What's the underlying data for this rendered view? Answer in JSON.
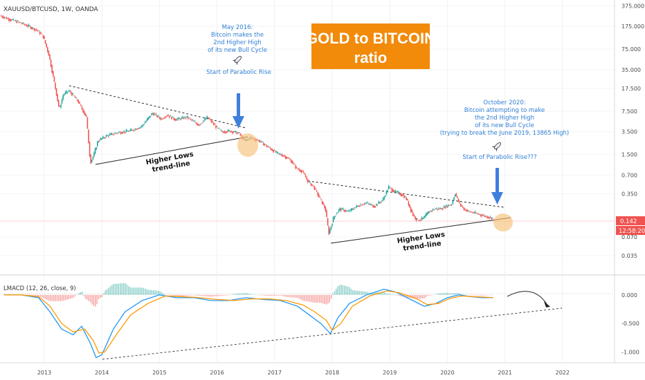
{
  "header": {
    "symbol_line": "XAUUSD/BTCUSD, 1W, OANDA"
  },
  "title_box": {
    "line1": "GOLD to BITCOIN",
    "line2": "ratio",
    "color": "#f28a0a"
  },
  "annotations": {
    "may2016": [
      "May 2016:",
      "Bitcoin makes the",
      "2nd Higher High",
      "of its new Bull Cycle"
    ],
    "start_parabolic": "Start of Parabolic Rise",
    "oct2020": [
      "October 2020:",
      "Bitcoin attempting to make",
      "the 2nd Higher High",
      "of its new Bull Cycle",
      "(trying to break the June 2019, 13865 High)"
    ],
    "start_parabolic_q": "Start of Parabolic Rise???",
    "higher_lows_1": [
      "Higher Lows",
      "trend-line"
    ],
    "higher_lows_2": [
      "Higher Lows",
      "trend-line"
    ]
  },
  "price_badge": {
    "value": "0.142",
    "timer": "12:58:20",
    "color": "#ef5350"
  },
  "indicator": {
    "label": "LMACD (12, 26, close, 9)"
  },
  "colors": {
    "up": "#26a69a",
    "down": "#ef5350",
    "macd": "#2196f3",
    "signal": "#ff9800",
    "hist_up": "#26a69a",
    "hist_down": "#ef5350",
    "annotation": "#2f7fd6"
  },
  "chart_data": [
    {
      "type": "line",
      "scale": "log",
      "series": [
        {
          "x": [
            2012.25,
            2012.4,
            2012.6,
            2012.75,
            2012.9,
            2013.0,
            2013.1,
            2013.2,
            2013.28,
            2013.35,
            2013.45,
            2013.6,
            2013.75,
            2013.82,
            2013.88,
            2013.95,
            2014.1,
            2014.3,
            2014.5,
            2014.7,
            2014.9,
            2015.05,
            2015.15,
            2015.3,
            2015.5,
            2015.7,
            2015.85,
            2016.0,
            2016.1,
            2016.25,
            2016.4,
            2016.5,
            2016.6,
            2016.75,
            2016.9,
            2017.05,
            2017.2,
            2017.3,
            2017.4,
            2017.5,
            2017.6,
            2017.7,
            2017.8,
            2017.9,
            2017.96,
            2018.05,
            2018.15,
            2018.3,
            2018.45,
            2018.6,
            2018.75,
            2018.9,
            2019.0,
            2019.1,
            2019.2,
            2019.3,
            2019.42,
            2019.5,
            2019.6,
            2019.7,
            2019.8,
            2019.9,
            2020.0,
            2020.1,
            2020.15,
            2020.22,
            2020.3,
            2020.4,
            2020.5,
            2020.6,
            2020.7,
            2020.8
          ],
          "y": [
            260,
            230,
            200,
            175,
            150,
            120,
            60,
            20,
            8,
            14,
            16,
            11,
            6,
            1.1,
            1.5,
            2.5,
            3.0,
            3.4,
            3.6,
            4.2,
            7.0,
            5.6,
            6.5,
            5.5,
            6.0,
            4.5,
            6.0,
            4.2,
            3.5,
            3.6,
            3.3,
            2.5,
            2.8,
            2.5,
            2.0,
            1.6,
            1.4,
            1.2,
            0.9,
            0.8,
            0.55,
            0.45,
            0.3,
            0.2,
            0.08,
            0.15,
            0.2,
            0.18,
            0.22,
            0.25,
            0.22,
            0.28,
            0.45,
            0.38,
            0.35,
            0.3,
            0.16,
            0.13,
            0.14,
            0.18,
            0.2,
            0.2,
            0.22,
            0.24,
            0.36,
            0.25,
            0.2,
            0.18,
            0.17,
            0.16,
            0.15,
            0.142
          ]
        }
      ],
      "x_ticks": [
        "2013",
        "2014",
        "2015",
        "2016",
        "2017",
        "2018",
        "2019",
        "2020",
        "2021",
        "2022"
      ],
      "y_ticks": [
        "375.000",
        "175.000",
        "75.000",
        "35.000",
        "17.500",
        "7.500",
        "3.500",
        "1.500",
        "0.700",
        "0.350",
        "0.070",
        "0.035"
      ],
      "ylim": [
        0.02,
        420
      ]
    },
    {
      "type": "line",
      "series": [
        {
          "name": "LMACD",
          "x": [
            2012.3,
            2012.6,
            2012.9,
            2013.1,
            2013.3,
            2013.5,
            2013.65,
            2013.8,
            2013.9,
            2014.0,
            2014.2,
            2014.4,
            2014.7,
            2015.0,
            2015.3,
            2015.6,
            2015.9,
            2016.2,
            2016.5,
            2016.8,
            2017.1,
            2017.4,
            2017.6,
            2017.8,
            2017.97,
            2018.1,
            2018.3,
            2018.6,
            2018.9,
            2019.1,
            2019.4,
            2019.6,
            2019.8,
            2020.0,
            2020.2,
            2020.4,
            2020.6,
            2020.8
          ],
          "y": [
            0.0,
            0.0,
            -0.05,
            -0.3,
            -0.6,
            -0.7,
            -0.55,
            -0.85,
            -1.1,
            -1.05,
            -0.6,
            -0.3,
            -0.1,
            0.0,
            -0.05,
            -0.05,
            -0.1,
            -0.1,
            -0.05,
            -0.08,
            -0.1,
            -0.2,
            -0.35,
            -0.5,
            -0.68,
            -0.4,
            -0.15,
            0.0,
            0.1,
            0.05,
            -0.1,
            -0.2,
            -0.15,
            -0.05,
            0.0,
            -0.03,
            -0.05,
            -0.05
          ]
        },
        {
          "name": "Signal",
          "x": [
            2012.3,
            2012.6,
            2012.9,
            2013.1,
            2013.3,
            2013.5,
            2013.7,
            2013.85,
            2013.95,
            2014.05,
            2014.25,
            2014.5,
            2014.8,
            2015.1,
            2015.4,
            2015.7,
            2016.0,
            2016.3,
            2016.6,
            2016.9,
            2017.2,
            2017.5,
            2017.7,
            2017.9,
            2018.0,
            2018.15,
            2018.35,
            2018.65,
            2018.95,
            2019.15,
            2019.45,
            2019.65,
            2019.85,
            2020.05,
            2020.25,
            2020.45,
            2020.65,
            2020.8
          ],
          "y": [
            0.0,
            0.0,
            -0.03,
            -0.2,
            -0.5,
            -0.65,
            -0.6,
            -0.8,
            -1.02,
            -1.0,
            -0.7,
            -0.35,
            -0.15,
            -0.02,
            -0.03,
            -0.05,
            -0.08,
            -0.1,
            -0.07,
            -0.07,
            -0.1,
            -0.18,
            -0.3,
            -0.45,
            -0.62,
            -0.5,
            -0.2,
            -0.02,
            0.07,
            0.04,
            -0.06,
            -0.17,
            -0.15,
            -0.06,
            -0.02,
            -0.03,
            -0.04,
            -0.05
          ]
        }
      ],
      "y_ticks": [
        "0.000",
        "-0.500",
        "-1.000"
      ],
      "ylim": [
        -1.25,
        0.3
      ]
    }
  ]
}
